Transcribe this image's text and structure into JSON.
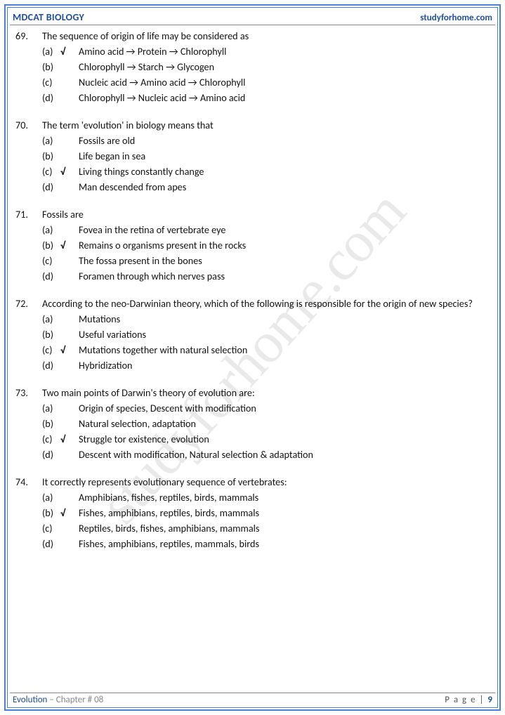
{
  "header": {
    "left": "MDCAT BIOLOGY",
    "right": "studyforhome.com"
  },
  "watermark": "studyforhome.com",
  "footer": {
    "chapter_name": "Evolution",
    "chapter_label": " – Chapter # 08",
    "page_word": "P a g e  | ",
    "page_num": "9"
  },
  "colors": {
    "border": "#4a7fd6",
    "heading": "#1f4e9c",
    "text": "#111111",
    "muted": "#888888",
    "watermark": "rgba(120,120,120,0.16)"
  },
  "typography": {
    "body_font": "Calibri",
    "body_size_pt": 11,
    "header_size_pt": 11,
    "watermark_font": "Times New Roman",
    "watermark_size_pt": 62
  },
  "questions": [
    {
      "num": "69.",
      "text": "The sequence of origin of life may be considered as",
      "options": [
        {
          "label": "(a)",
          "correct": true,
          "text": "Amino acid → Protein → Chlorophyll"
        },
        {
          "label": "(b)",
          "correct": false,
          "text": "Chlorophyll → Starch → Glycogen"
        },
        {
          "label": "(c)",
          "correct": false,
          "text": "Nucleic acid → Amino acid → Chlorophyll"
        },
        {
          "label": "(d)",
          "correct": false,
          "text": "Chlorophyll → Nucleic acid → Amino acid"
        }
      ]
    },
    {
      "num": "70.",
      "text": "The term 'evolution' in biology means that",
      "options": [
        {
          "label": "(a)",
          "correct": false,
          "text": "Fossils are old"
        },
        {
          "label": "(b)",
          "correct": false,
          "text": "Life began in sea"
        },
        {
          "label": "(c)",
          "correct": true,
          "text": "Living things constantly change"
        },
        {
          "label": "(d)",
          "correct": false,
          "text": "Man descended from apes"
        }
      ]
    },
    {
      "num": "71.",
      "text": "Fossils are",
      "options": [
        {
          "label": "(a)",
          "correct": false,
          "text": "Fovea in the retina of vertebrate eye"
        },
        {
          "label": "(b)",
          "correct": true,
          "text": "Remains o organisms present in the rocks"
        },
        {
          "label": "(c)",
          "correct": false,
          "text": "The fossa present in the bones"
        },
        {
          "label": "(d)",
          "correct": false,
          "text": "Foramen through which nerves pass"
        }
      ]
    },
    {
      "num": "72.",
      "text": "According to the neo-Darwinian theory, which of the following is responsible for the origin of new species?",
      "options": [
        {
          "label": "(a)",
          "correct": false,
          "text": "Mutations"
        },
        {
          "label": "(b)",
          "correct": false,
          "text": "Useful variations"
        },
        {
          "label": "(c)",
          "correct": true,
          "text": "Mutations together with natural selection"
        },
        {
          "label": "(d)",
          "correct": false,
          "text": "Hybridization"
        }
      ]
    },
    {
      "num": "73.",
      "text": "Two main points of Darwin's theory of evolution are:",
      "options": [
        {
          "label": "(a)",
          "correct": false,
          "text": "Origin of species, Descent with modification"
        },
        {
          "label": "(b)",
          "correct": false,
          "text": "Natural selection, adaptation"
        },
        {
          "label": "(c)",
          "correct": true,
          "text": "Struggle tor existence, evolution"
        },
        {
          "label": "(d)",
          "correct": false,
          "text": "Descent with modification, Natural selection & adaptation"
        }
      ]
    },
    {
      "num": "74.",
      "text": "It correctly represents evolutionary sequence of vertebrates:",
      "options": [
        {
          "label": "(a)",
          "correct": false,
          "text": "Amphibians, fishes, reptiles, birds, mammals"
        },
        {
          "label": "(b)",
          "correct": true,
          "text": "Fishes, amphibians, reptiles, birds, mammals"
        },
        {
          "label": "(c)",
          "correct": false,
          "text": "Reptiles, birds, fishes, amphibians, mammals"
        },
        {
          "label": "(d)",
          "correct": false,
          "text": "Fishes, amphibians, reptiles, mammals, birds"
        }
      ]
    }
  ],
  "checkmark_glyph": "√"
}
